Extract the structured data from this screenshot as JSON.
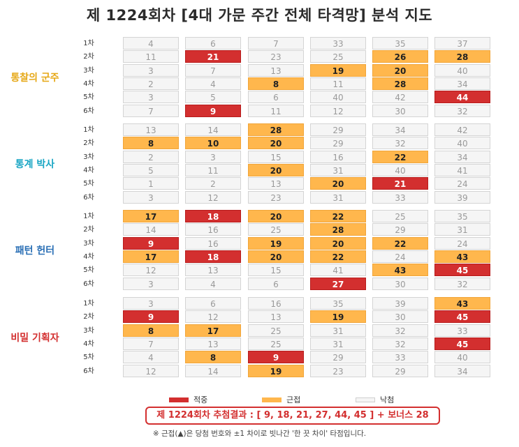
{
  "title": "제 1224회차 [4대 가문 주간 전체 타격망] 분석 지도",
  "colors": {
    "hit": "#d32f2f",
    "near": "#ffb74d",
    "miss": "#f5f5f5"
  },
  "chart_data": {
    "type": "table",
    "groups": [
      {
        "name": "통찰의 군주",
        "color": "#e6a817",
        "rows": [
          {
            "label": "1차",
            "cells": [
              {
                "v": "4",
                "s": "miss"
              },
              {
                "v": "6",
                "s": "miss"
              },
              {
                "v": "7",
                "s": "miss"
              },
              {
                "v": "33",
                "s": "miss"
              },
              {
                "v": "35",
                "s": "miss"
              },
              {
                "v": "37",
                "s": "miss"
              }
            ]
          },
          {
            "label": "2차",
            "cells": [
              {
                "v": "11",
                "s": "miss"
              },
              {
                "v": "21",
                "s": "hit"
              },
              {
                "v": "23",
                "s": "miss"
              },
              {
                "v": "25",
                "s": "miss"
              },
              {
                "v": "26",
                "s": "near"
              },
              {
                "v": "28",
                "s": "near"
              }
            ]
          },
          {
            "label": "3차",
            "cells": [
              {
                "v": "3",
                "s": "miss"
              },
              {
                "v": "7",
                "s": "miss"
              },
              {
                "v": "13",
                "s": "miss"
              },
              {
                "v": "19",
                "s": "near"
              },
              {
                "v": "20",
                "s": "near"
              },
              {
                "v": "40",
                "s": "miss"
              }
            ]
          },
          {
            "label": "4차",
            "cells": [
              {
                "v": "2",
                "s": "miss"
              },
              {
                "v": "4",
                "s": "miss"
              },
              {
                "v": "8",
                "s": "near"
              },
              {
                "v": "11",
                "s": "miss"
              },
              {
                "v": "28",
                "s": "near"
              },
              {
                "v": "34",
                "s": "miss"
              }
            ]
          },
          {
            "label": "5차",
            "cells": [
              {
                "v": "3",
                "s": "miss"
              },
              {
                "v": "5",
                "s": "miss"
              },
              {
                "v": "6",
                "s": "miss"
              },
              {
                "v": "40",
                "s": "miss"
              },
              {
                "v": "42",
                "s": "miss"
              },
              {
                "v": "44",
                "s": "hit"
              }
            ]
          },
          {
            "label": "6차",
            "cells": [
              {
                "v": "7",
                "s": "miss"
              },
              {
                "v": "9",
                "s": "hit"
              },
              {
                "v": "11",
                "s": "miss"
              },
              {
                "v": "12",
                "s": "miss"
              },
              {
                "v": "30",
                "s": "miss"
              },
              {
                "v": "32",
                "s": "miss"
              }
            ]
          }
        ]
      },
      {
        "name": "통계 박사",
        "color": "#1aa6c4",
        "rows": [
          {
            "label": "1차",
            "cells": [
              {
                "v": "13",
                "s": "miss"
              },
              {
                "v": "14",
                "s": "miss"
              },
              {
                "v": "28",
                "s": "near"
              },
              {
                "v": "29",
                "s": "miss"
              },
              {
                "v": "34",
                "s": "miss"
              },
              {
                "v": "42",
                "s": "miss"
              }
            ]
          },
          {
            "label": "2차",
            "cells": [
              {
                "v": "8",
                "s": "near"
              },
              {
                "v": "10",
                "s": "near"
              },
              {
                "v": "20",
                "s": "near"
              },
              {
                "v": "29",
                "s": "miss"
              },
              {
                "v": "32",
                "s": "miss"
              },
              {
                "v": "40",
                "s": "miss"
              }
            ]
          },
          {
            "label": "3차",
            "cells": [
              {
                "v": "2",
                "s": "miss"
              },
              {
                "v": "3",
                "s": "miss"
              },
              {
                "v": "15",
                "s": "miss"
              },
              {
                "v": "16",
                "s": "miss"
              },
              {
                "v": "22",
                "s": "near"
              },
              {
                "v": "34",
                "s": "miss"
              }
            ]
          },
          {
            "label": "4차",
            "cells": [
              {
                "v": "5",
                "s": "miss"
              },
              {
                "v": "11",
                "s": "miss"
              },
              {
                "v": "20",
                "s": "near"
              },
              {
                "v": "31",
                "s": "miss"
              },
              {
                "v": "40",
                "s": "miss"
              },
              {
                "v": "41",
                "s": "miss"
              }
            ]
          },
          {
            "label": "5차",
            "cells": [
              {
                "v": "1",
                "s": "miss"
              },
              {
                "v": "2",
                "s": "miss"
              },
              {
                "v": "13",
                "s": "miss"
              },
              {
                "v": "20",
                "s": "near"
              },
              {
                "v": "21",
                "s": "hit"
              },
              {
                "v": "24",
                "s": "miss"
              }
            ]
          },
          {
            "label": "6차",
            "cells": [
              {
                "v": "3",
                "s": "miss"
              },
              {
                "v": "12",
                "s": "miss"
              },
              {
                "v": "23",
                "s": "miss"
              },
              {
                "v": "31",
                "s": "miss"
              },
              {
                "v": "33",
                "s": "miss"
              },
              {
                "v": "39",
                "s": "miss"
              }
            ]
          }
        ]
      },
      {
        "name": "패턴 헌터",
        "color": "#2a6fb5",
        "rows": [
          {
            "label": "1차",
            "cells": [
              {
                "v": "17",
                "s": "near"
              },
              {
                "v": "18",
                "s": "hit"
              },
              {
                "v": "20",
                "s": "near"
              },
              {
                "v": "22",
                "s": "near"
              },
              {
                "v": "25",
                "s": "miss"
              },
              {
                "v": "35",
                "s": "miss"
              }
            ]
          },
          {
            "label": "2차",
            "cells": [
              {
                "v": "14",
                "s": "miss"
              },
              {
                "v": "16",
                "s": "miss"
              },
              {
                "v": "25",
                "s": "miss"
              },
              {
                "v": "28",
                "s": "near"
              },
              {
                "v": "29",
                "s": "miss"
              },
              {
                "v": "31",
                "s": "miss"
              }
            ]
          },
          {
            "label": "3차",
            "cells": [
              {
                "v": "9",
                "s": "hit"
              },
              {
                "v": "16",
                "s": "miss"
              },
              {
                "v": "19",
                "s": "near"
              },
              {
                "v": "20",
                "s": "near"
              },
              {
                "v": "22",
                "s": "near"
              },
              {
                "v": "24",
                "s": "miss"
              }
            ]
          },
          {
            "label": "4차",
            "cells": [
              {
                "v": "17",
                "s": "near"
              },
              {
                "v": "18",
                "s": "hit"
              },
              {
                "v": "20",
                "s": "near"
              },
              {
                "v": "22",
                "s": "near"
              },
              {
                "v": "24",
                "s": "miss"
              },
              {
                "v": "43",
                "s": "near"
              }
            ]
          },
          {
            "label": "5차",
            "cells": [
              {
                "v": "12",
                "s": "miss"
              },
              {
                "v": "13",
                "s": "miss"
              },
              {
                "v": "15",
                "s": "miss"
              },
              {
                "v": "41",
                "s": "miss"
              },
              {
                "v": "43",
                "s": "near"
              },
              {
                "v": "45",
                "s": "hit"
              }
            ]
          },
          {
            "label": "6차",
            "cells": [
              {
                "v": "3",
                "s": "miss"
              },
              {
                "v": "4",
                "s": "miss"
              },
              {
                "v": "6",
                "s": "miss"
              },
              {
                "v": "27",
                "s": "hit"
              },
              {
                "v": "30",
                "s": "miss"
              },
              {
                "v": "32",
                "s": "miss"
              }
            ]
          }
        ]
      },
      {
        "name": "비밀 기획자",
        "color": "#d32f2f",
        "rows": [
          {
            "label": "1차",
            "cells": [
              {
                "v": "3",
                "s": "miss"
              },
              {
                "v": "6",
                "s": "miss"
              },
              {
                "v": "16",
                "s": "miss"
              },
              {
                "v": "35",
                "s": "miss"
              },
              {
                "v": "39",
                "s": "miss"
              },
              {
                "v": "43",
                "s": "near"
              }
            ]
          },
          {
            "label": "2차",
            "cells": [
              {
                "v": "9",
                "s": "hit"
              },
              {
                "v": "12",
                "s": "miss"
              },
              {
                "v": "13",
                "s": "miss"
              },
              {
                "v": "19",
                "s": "near"
              },
              {
                "v": "30",
                "s": "miss"
              },
              {
                "v": "45",
                "s": "hit"
              }
            ]
          },
          {
            "label": "3차",
            "cells": [
              {
                "v": "8",
                "s": "near"
              },
              {
                "v": "17",
                "s": "near"
              },
              {
                "v": "25",
                "s": "miss"
              },
              {
                "v": "31",
                "s": "miss"
              },
              {
                "v": "32",
                "s": "miss"
              },
              {
                "v": "33",
                "s": "miss"
              }
            ]
          },
          {
            "label": "4차",
            "cells": [
              {
                "v": "7",
                "s": "miss"
              },
              {
                "v": "13",
                "s": "miss"
              },
              {
                "v": "25",
                "s": "miss"
              },
              {
                "v": "31",
                "s": "miss"
              },
              {
                "v": "32",
                "s": "miss"
              },
              {
                "v": "45",
                "s": "hit"
              }
            ]
          },
          {
            "label": "5차",
            "cells": [
              {
                "v": "4",
                "s": "miss"
              },
              {
                "v": "8",
                "s": "near"
              },
              {
                "v": "9",
                "s": "hit"
              },
              {
                "v": "29",
                "s": "miss"
              },
              {
                "v": "33",
                "s": "miss"
              },
              {
                "v": "40",
                "s": "miss"
              }
            ]
          },
          {
            "label": "6차",
            "cells": [
              {
                "v": "12",
                "s": "miss"
              },
              {
                "v": "14",
                "s": "miss"
              },
              {
                "v": "19",
                "s": "near"
              },
              {
                "v": "23",
                "s": "miss"
              },
              {
                "v": "29",
                "s": "miss"
              },
              {
                "v": "34",
                "s": "miss"
              }
            ]
          }
        ]
      }
    ]
  },
  "legend": [
    {
      "label": "적중",
      "status": "hit"
    },
    {
      "label": "근접",
      "status": "near"
    },
    {
      "label": "낙첨",
      "status": "miss"
    }
  ],
  "result_text": "제 1224회차 추첨결과 : [ 9, 18, 21, 27, 44, 45 ]  +  보너스 28",
  "note": "※ 근접(▲)은 당첨 번호와 ±1 차이로 빗나간 '한 끗 차이' 타점입니다."
}
